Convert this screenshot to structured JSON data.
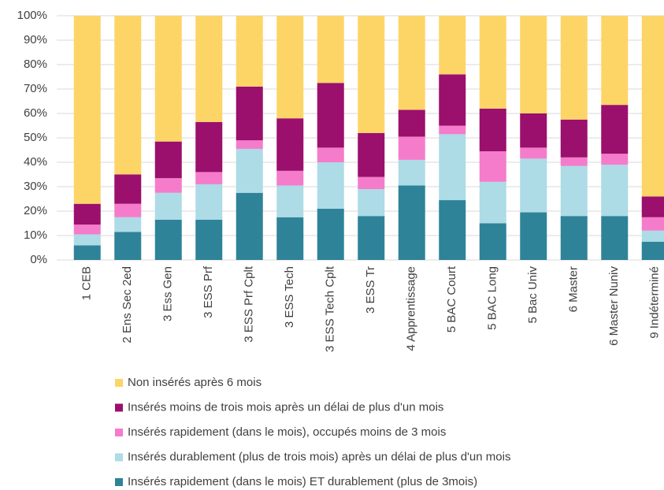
{
  "chart_data": {
    "type": "stacked_bar",
    "categories": [
      "1 CEB",
      "2 Ens Sec 2ed",
      "3 Ess Gen",
      "3 ESS Prf",
      "3 ESS Prf Cplt",
      "3 ESS Tech",
      "3 ESS Tech Cplt",
      "3 ESS Tr",
      "4 Apprentissage",
      "5 BAC Court",
      "5 BAC Long",
      "5 Bac Univ",
      "6 Master",
      "6 Master Nuniv",
      "9 Indéterminé"
    ],
    "series": [
      {
        "name": "Insérés rapidement (dans le mois) ET durablement (plus de 3mois)",
        "color": "#2e8398",
        "values": [
          6,
          11.5,
          16.5,
          16.5,
          27.5,
          17.5,
          21,
          18,
          30.5,
          24.5,
          15,
          19.5,
          18,
          18,
          7.5
        ]
      },
      {
        "name": "Insérés durablement (plus de trois mois) après un délai de plus d'un mois",
        "color": "#addbe6",
        "values": [
          4.5,
          6,
          11,
          14.5,
          18,
          13,
          19,
          11,
          10.5,
          27,
          17,
          22,
          20.5,
          21,
          4.5
        ]
      },
      {
        "name": "Insérés rapidement (dans le mois), occupés moins de 3 mois",
        "color": "#f47ccb",
        "values": [
          4,
          5.5,
          6,
          5,
          3.5,
          6,
          6,
          5,
          9.5,
          3.5,
          12.5,
          4.5,
          3.5,
          4.5,
          5.5
        ]
      },
      {
        "name": "Insérés moins de trois mois après un délai de plus d'un mois",
        "color": "#9b0f6d",
        "values": [
          8.5,
          12,
          15,
          20.5,
          22,
          21.5,
          26.5,
          18,
          11,
          21,
          17.5,
          14,
          15.5,
          20,
          8.5
        ]
      },
      {
        "name": "Non insérés après 6 mois",
        "color": "#fdd567",
        "values": [
          77,
          65,
          51.5,
          43.5,
          29,
          42,
          27.5,
          48,
          38.5,
          24,
          38,
          40,
          42.5,
          36.5,
          74
        ]
      }
    ],
    "ylim": [
      0,
      100
    ],
    "yticks": [
      {
        "value": 0,
        "label": "0%"
      },
      {
        "value": 10,
        "label": "10%"
      },
      {
        "value": 20,
        "label": "20%"
      },
      {
        "value": 30,
        "label": "30%"
      },
      {
        "value": 40,
        "label": "40%"
      },
      {
        "value": 50,
        "label": "50%"
      },
      {
        "value": 60,
        "label": "60%"
      },
      {
        "value": 70,
        "label": "70%"
      },
      {
        "value": 80,
        "label": "80%"
      },
      {
        "value": 90,
        "label": "90%"
      },
      {
        "value": 100,
        "label": "100%"
      }
    ],
    "grid": true
  }
}
